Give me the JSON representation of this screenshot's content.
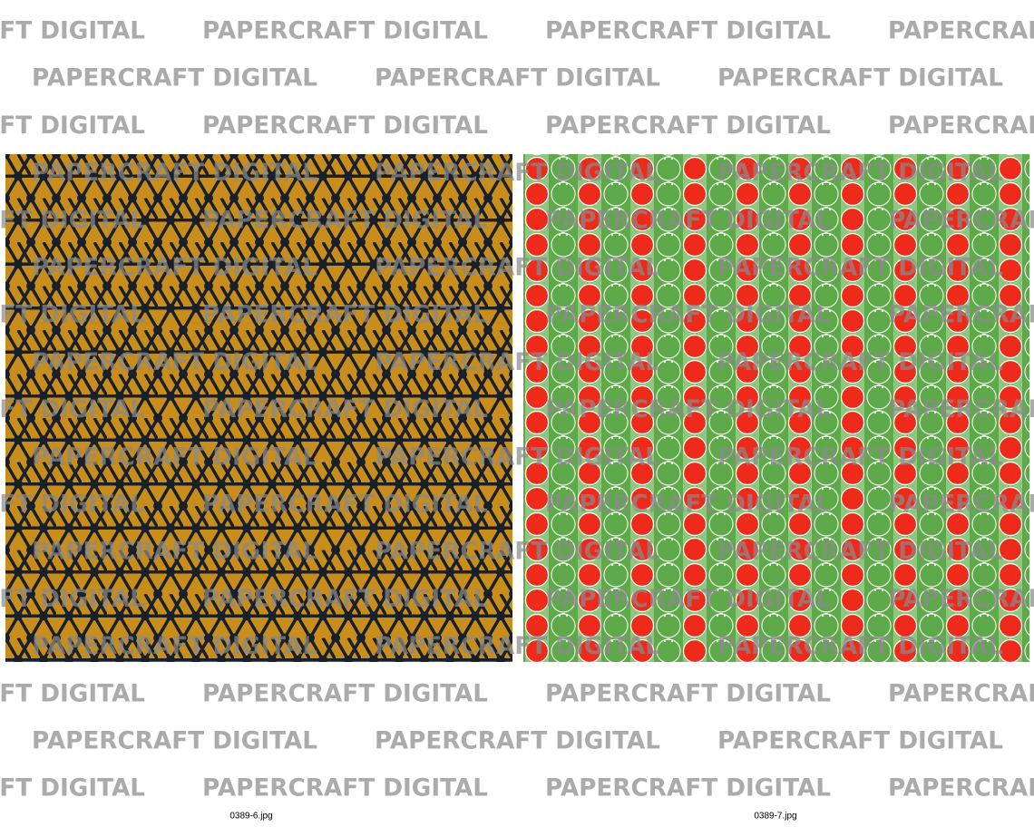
{
  "watermark": "PAPERCRAFT DIGITAL",
  "images": [
    {
      "caption": "0389-6.jpg"
    },
    {
      "caption": "0389-7.jpg"
    }
  ]
}
